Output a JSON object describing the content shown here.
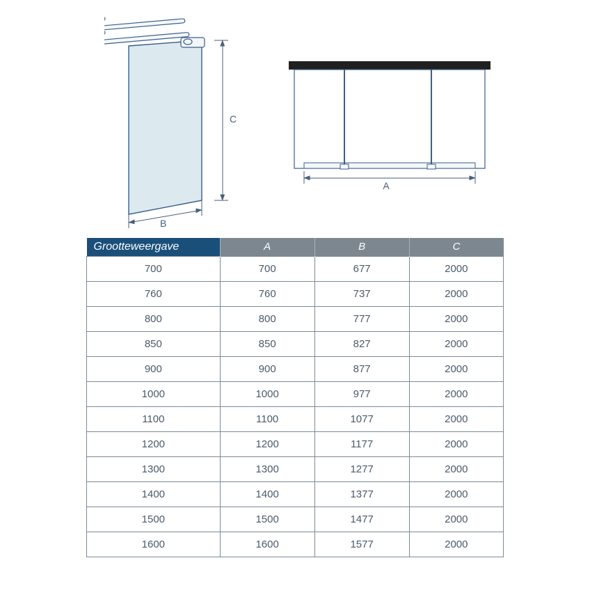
{
  "diagram": {
    "label_A": "A",
    "label_B": "B",
    "label_C": "C",
    "stroke": "#3a5e8a",
    "glass_fill": "#dce9ef",
    "glass_stroke": "#3a5e8a",
    "bar_fill": "#202020",
    "dim_stroke": "#4a5e7a"
  },
  "table": {
    "header_first_bg": "#1a4f7a",
    "header_other_bg": "#7d8790",
    "header_text": "#ffffff",
    "cell_border": "#7a8a96",
    "cell_text": "#4a5a6a",
    "font_size_header": 15,
    "font_size_cell": 15,
    "columns": [
      "Grootteweergave",
      "A",
      "B",
      "C"
    ],
    "col_widths_pct": [
      32,
      22.7,
      22.7,
      22.6
    ],
    "rows": [
      [
        "700",
        "700",
        "677",
        "2000"
      ],
      [
        "760",
        "760",
        "737",
        "2000"
      ],
      [
        "800",
        "800",
        "777",
        "2000"
      ],
      [
        "850",
        "850",
        "827",
        "2000"
      ],
      [
        "900",
        "900",
        "877",
        "2000"
      ],
      [
        "1000",
        "1000",
        "977",
        "2000"
      ],
      [
        "1100",
        "1100",
        "1077",
        "2000"
      ],
      [
        "1200",
        "1200",
        "1177",
        "2000"
      ],
      [
        "1300",
        "1300",
        "1277",
        "2000"
      ],
      [
        "1400",
        "1400",
        "1377",
        "2000"
      ],
      [
        "1500",
        "1500",
        "1477",
        "2000"
      ],
      [
        "1600",
        "1600",
        "1577",
        "2000"
      ]
    ]
  }
}
